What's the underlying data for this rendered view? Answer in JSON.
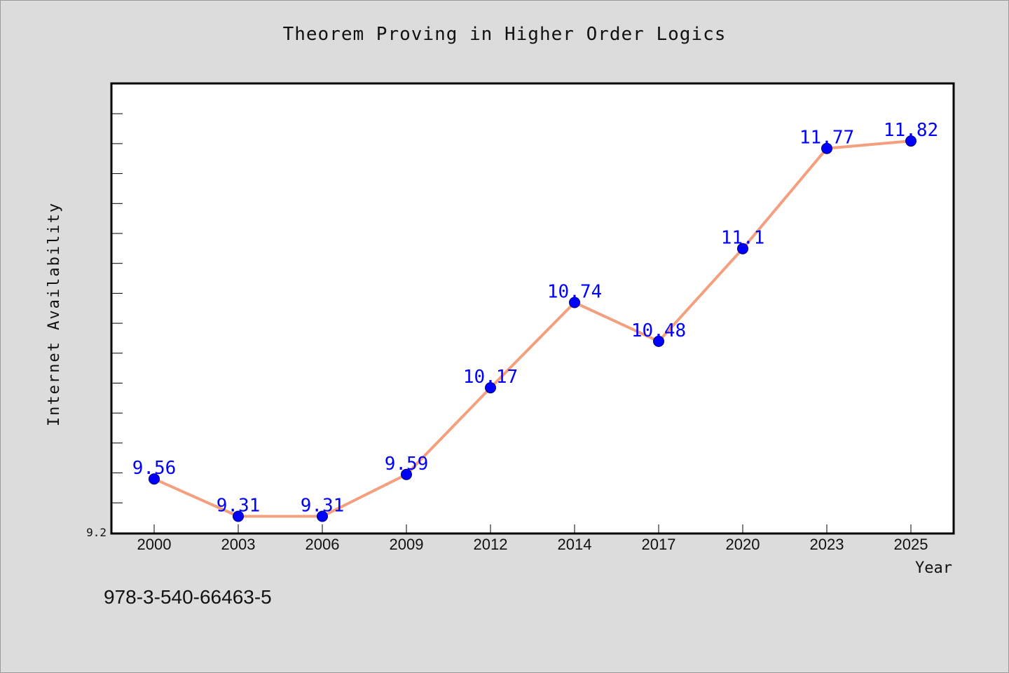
{
  "chart_data": {
    "type": "line",
    "title": "Theorem Proving in Higher Order Logics",
    "xlabel": "Year",
    "ylabel": "Internet Availability",
    "categories": [
      "2000",
      "2003",
      "2006",
      "2009",
      "2012",
      "2014",
      "2017",
      "2020",
      "2023",
      "2025"
    ],
    "series": [
      {
        "values": [
          9.56,
          9.31,
          9.31,
          9.59,
          10.17,
          10.74,
          10.48,
          11.1,
          11.77,
          11.82
        ],
        "data_labels": [
          "9.56",
          "9.31",
          "9.31",
          "9.59",
          "10.17",
          "10.74",
          "10.48",
          "11.1",
          "11.77",
          "11.82"
        ]
      }
    ],
    "yticks": [
      "9.2"
    ],
    "ylim": [
      9.2,
      12.2
    ],
    "grid": false,
    "legend": "none",
    "colors": {
      "line": "#f4a07e",
      "marker": "#0000ff",
      "data_label": "#0000ff",
      "plot_background": "#ffffff",
      "page_background": "#dcdcdc"
    }
  },
  "caption": "978-3-540-66463-5"
}
